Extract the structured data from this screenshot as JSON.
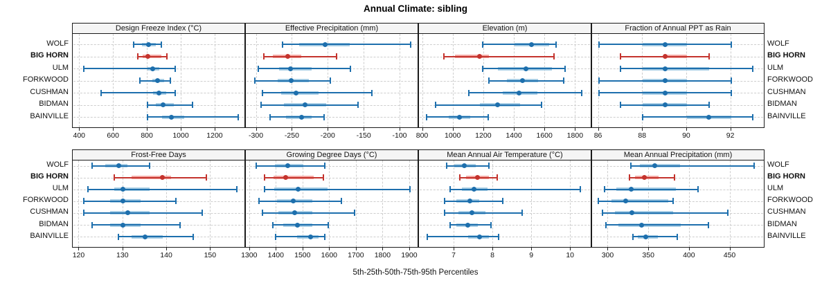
{
  "chart_data": {
    "type": "scatter",
    "variant": "percentile-interval-dotplot",
    "title": "Annual Climate: sibling",
    "footer": "5th-25th-50th-75th-95th Percentiles",
    "percentile_labels": [
      "5th",
      "25th",
      "50th",
      "75th",
      "95th"
    ],
    "categories": [
      "WOLF",
      "BIG HORN",
      "ULM",
      "FORKWOOD",
      "CUSHMAN",
      "BIDMAN",
      "BAINVILLE"
    ],
    "highlight_category": "BIG HORN",
    "legend_position": "none",
    "grid": "dashed-both-axes",
    "layout_hint": "2 rows x 4 columns of panels; category labels on both left and right sides; x-axes below each panel row",
    "colors": {
      "series_dark": "#1D6FAD",
      "series_light": "#A8CEE5",
      "highlight_dark": "#C4332D",
      "highlight_light": "#F5ABA6",
      "grid": "#CDCDCD",
      "panel_border": "#1A1A1A",
      "header_bg": "#F5F5F5",
      "text": "#111111"
    },
    "panels": [
      {
        "title": "Design Freeze Index (°C)",
        "xlim": [
          358,
          1380
        ],
        "ticks": [
          400,
          600,
          800,
          1000,
          1200
        ],
        "rows": [
          [
            718,
            765,
            807,
            848,
            880
          ],
          [
            744,
            770,
            802,
            880,
            915
          ],
          [
            422,
            798,
            830,
            868,
            964
          ],
          [
            754,
            827,
            858,
            897,
            936
          ],
          [
            524,
            834,
            865,
            911,
            964
          ],
          [
            800,
            849,
            890,
            953,
            1065
          ],
          [
            800,
            884,
            940,
            1016,
            1334
          ]
        ]
      },
      {
        "title": "Effective Precipitation (mm)",
        "xlim": [
          -315,
          -74
        ],
        "ticks": [
          -300,
          -250,
          -200,
          -150,
          -100
        ],
        "rows": [
          [
            -264,
            -241,
            -205,
            -170,
            -86
          ],
          [
            -290,
            -277,
            -257,
            -238,
            -189
          ],
          [
            -298,
            -269,
            -253,
            -223,
            -169
          ],
          [
            -302,
            -271,
            -252,
            -227,
            -197
          ],
          [
            -292,
            -266,
            -245,
            -214,
            -140
          ],
          [
            -294,
            -262,
            -233,
            -203,
            -159
          ],
          [
            -281,
            -259,
            -237,
            -223,
            -206
          ]
        ]
      },
      {
        "title": "Elevation (m)",
        "xlim": [
          775,
          1907
        ],
        "ticks": [
          800,
          1000,
          1200,
          1400,
          1600,
          1800
        ],
        "rows": [
          [
            1190,
            1400,
            1510,
            1625,
            1673
          ],
          [
            940,
            1010,
            1172,
            1234,
            1660
          ],
          [
            1190,
            1290,
            1474,
            1645,
            1730
          ],
          [
            1234,
            1350,
            1454,
            1552,
            1722
          ],
          [
            1100,
            1325,
            1428,
            1550,
            1838
          ],
          [
            885,
            1172,
            1288,
            1435,
            1575
          ],
          [
            823,
            970,
            1040,
            1110,
            1226
          ]
        ]
      },
      {
        "title": "Fraction of Annual PPT as Rain",
        "xlim": [
          85.7,
          93.55
        ],
        "ticks": [
          86,
          88,
          90,
          92
        ],
        "rows": [
          [
            86,
            88,
            89,
            90,
            92
          ],
          [
            87,
            89,
            89,
            90,
            91
          ],
          [
            87,
            88,
            89,
            91,
            93
          ],
          [
            86,
            88,
            89,
            90,
            92
          ],
          [
            86,
            88,
            89,
            90,
            92
          ],
          [
            87,
            88,
            89,
            90,
            91
          ],
          [
            88,
            90,
            91,
            92,
            93
          ]
        ]
      },
      {
        "title": "Frost-Free Days",
        "xlim": [
          118.5,
          158
        ],
        "ticks": [
          120,
          130,
          140,
          150
        ],
        "rows": [
          [
            123,
            126,
            129,
            131,
            136
          ],
          [
            128,
            132,
            139,
            141,
            149
          ],
          [
            122,
            128,
            130,
            136,
            156
          ],
          [
            121,
            127,
            130,
            134,
            142
          ],
          [
            121,
            127,
            131,
            136,
            148
          ],
          [
            123,
            127,
            130,
            134,
            143
          ],
          [
            129,
            132,
            135,
            139,
            146
          ]
        ]
      },
      {
        "title": "Growing Degree Days (°C)",
        "xlim": [
          1285,
          1934
        ],
        "ticks": [
          1300,
          1400,
          1500,
          1600,
          1700,
          1800,
          1900
        ],
        "rows": [
          [
            1325,
            1393,
            1441,
            1501,
            1582
          ],
          [
            1356,
            1390,
            1435,
            1540,
            1576
          ],
          [
            1356,
            1391,
            1481,
            1591,
            1900
          ],
          [
            1335,
            1401,
            1462,
            1534,
            1642
          ],
          [
            1347,
            1406,
            1468,
            1534,
            1693
          ],
          [
            1386,
            1424,
            1479,
            1534,
            1593
          ],
          [
            1397,
            1477,
            1527,
            1558,
            1582
          ]
        ]
      },
      {
        "title": "Mean Annual Air Temperature (°C)",
        "xlim": [
          6.09,
          10.55
        ],
        "ticks": [
          7,
          8,
          9,
          10
        ],
        "rows": [
          [
            6.8,
            7.0,
            7.25,
            7.55,
            7.9
          ],
          [
            7.15,
            7.3,
            7.6,
            7.9,
            8.1
          ],
          [
            6.9,
            7.2,
            7.5,
            7.85,
            10.25
          ],
          [
            6.75,
            7.05,
            7.4,
            7.65,
            8.25
          ],
          [
            6.75,
            7.1,
            7.45,
            7.8,
            8.75
          ],
          [
            6.9,
            7.05,
            7.35,
            7.6,
            7.95
          ],
          [
            6.3,
            7.35,
            7.65,
            7.9,
            8.15
          ]
        ]
      },
      {
        "title": "Mean Annual Precipitation (mm)",
        "xlim": [
          280,
          493
        ],
        "ticks": [
          300,
          350,
          400,
          450
        ],
        "rows": [
          [
            328,
            339,
            357,
            388,
            479
          ],
          [
            326,
            333,
            344,
            362,
            381
          ],
          [
            295,
            310,
            328,
            383,
            410
          ],
          [
            288,
            304,
            321,
            374,
            380
          ],
          [
            293,
            308,
            329,
            380,
            447
          ],
          [
            297,
            312,
            341,
            389,
            423
          ],
          [
            330,
            336,
            346,
            361,
            385
          ]
        ]
      }
    ]
  }
}
